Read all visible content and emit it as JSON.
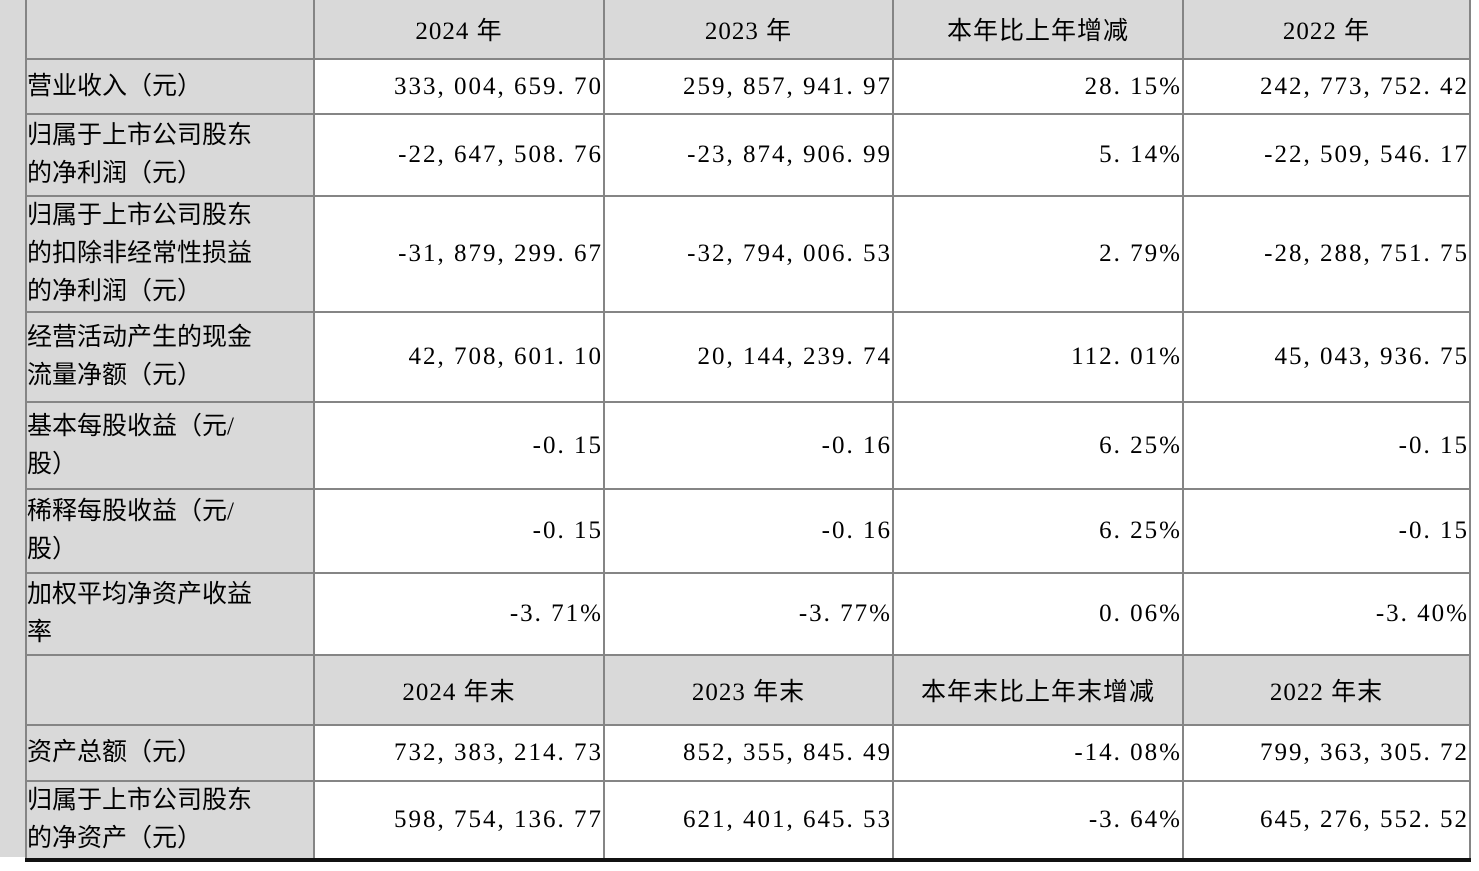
{
  "table": {
    "sections": [
      {
        "header": [
          "2024 年",
          "2023 年",
          "本年比上年增减",
          "2022 年"
        ],
        "rows": [
          {
            "label": "营业收入（元）",
            "values": [
              "333,004,659.70",
              "259,857,941.97",
              "28.15%",
              "242,773,752.42"
            ]
          },
          {
            "label": "归属于上市公司股东\n的净利润（元）",
            "values": [
              "-22,647,508.76",
              "-23,874,906.99",
              "5.14%",
              "-22,509,546.17"
            ]
          },
          {
            "label": "归属于上市公司股东\n的扣除非经常性损益\n的净利润（元）",
            "values": [
              "-31,879,299.67",
              "-32,794,006.53",
              "2.79%",
              "-28,288,751.75"
            ]
          },
          {
            "label": "经营活动产生的现金\n流量净额（元）",
            "values": [
              "42,708,601.10",
              "20,144,239.74",
              "112.01%",
              "45,043,936.75"
            ]
          },
          {
            "label": "基本每股收益（元/\n股）",
            "values": [
              "-0.15",
              "-0.16",
              "6.25%",
              "-0.15"
            ]
          },
          {
            "label": "稀释每股收益（元/\n股）",
            "values": [
              "-0.15",
              "-0.16",
              "6.25%",
              "-0.15"
            ]
          },
          {
            "label": "加权平均净资产收益\n率",
            "values": [
              "-3.71%",
              "-3.77%",
              "0.06%",
              "-3.40%"
            ]
          }
        ]
      },
      {
        "header": [
          "2024 年末",
          "2023 年末",
          "本年末比上年末增减",
          "2022 年末"
        ],
        "rows": [
          {
            "label": "资产总额（元）",
            "values": [
              "732,383,214.73",
              "852,355,845.49",
              "-14.08%",
              "799,363,305.72"
            ]
          },
          {
            "label": "归属于上市公司股东\n的净资产（元）",
            "values": [
              "598,754,136.77",
              "621,401,645.53",
              "-3.64%",
              "645,276,552.52"
            ]
          }
        ]
      }
    ],
    "colors": {
      "cell_fill_gray": "#d9d9d9",
      "grid_line": "#858585",
      "bottom_rule": "#111111",
      "text": "#000000"
    }
  }
}
